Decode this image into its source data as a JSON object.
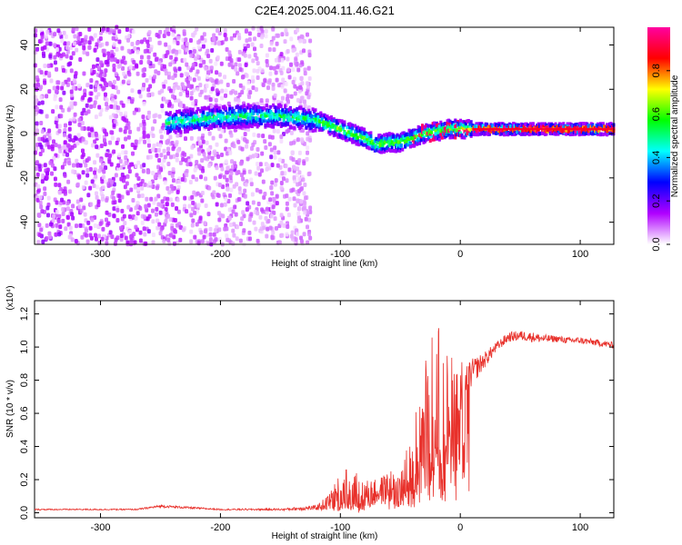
{
  "chart_data": [
    {
      "type": "heatmap",
      "title": "C2E4.2025.004.11.46.G21",
      "xlabel": "Height of straight line (km)",
      "ylabel": "Frequency (Hz)",
      "xlim": [
        -355,
        128
      ],
      "ylim": [
        -50,
        48
      ],
      "xticks": [
        -300,
        -200,
        -100,
        0,
        100
      ],
      "yticks": [
        -40,
        -20,
        0,
        20,
        40
      ],
      "colorbar": {
        "label": "Normalized spectral amplitude",
        "range": [
          0,
          1
        ],
        "ticks": [
          "0.0",
          "0.2",
          "0.4",
          "0.6",
          "0.8"
        ],
        "tick_values": [
          0,
          0.2,
          0.4,
          0.6,
          0.8
        ],
        "colors": [
          "#ffffff",
          "#b000ff",
          "#0000ff",
          "#00ffff",
          "#00ff00",
          "#ffff00",
          "#ff0000",
          "#ff00a0"
        ]
      },
      "ridge": {
        "description": "dominant frequency track",
        "x": [
          -240,
          -210,
          -180,
          -150,
          -120,
          -100,
          -80,
          -70,
          -60,
          -50,
          -40,
          -30,
          -20,
          -10,
          0,
          20,
          60,
          100,
          128
        ],
        "y": [
          5,
          7,
          8,
          8,
          6,
          2,
          -2,
          -5,
          -4,
          -4,
          -2,
          0,
          1,
          2,
          2,
          2,
          2,
          2,
          2
        ]
      },
      "noise_region_x": [
        -355,
        -125
      ]
    },
    {
      "type": "line",
      "xlabel": "Height of straight line (km)",
      "ylabel": "SNR (10 * v/v)",
      "yscale_label": "(x10⁴)",
      "xlim": [
        -355,
        128
      ],
      "ylim": [
        -0.03,
        1.28
      ],
      "xticks": [
        -300,
        -200,
        -100,
        0,
        100
      ],
      "yticks": [
        0.0,
        0.2,
        0.4,
        0.6,
        0.8,
        1.0,
        1.2
      ],
      "series": [
        {
          "name": "SNR",
          "color": "#e8302a",
          "x": [
            -355,
            -300,
            -270,
            -250,
            -200,
            -150,
            -120,
            -110,
            -100,
            -90,
            -80,
            -70,
            -60,
            -50,
            -40,
            -35,
            -30,
            -25,
            -20,
            -15,
            -10,
            -5,
            0,
            5,
            10,
            20,
            30,
            40,
            50,
            60,
            70,
            80,
            90,
            100,
            110,
            120,
            128
          ],
          "y": [
            0.02,
            0.02,
            0.02,
            0.04,
            0.02,
            0.02,
            0.03,
            0.06,
            0.12,
            0.14,
            0.1,
            0.12,
            0.15,
            0.14,
            0.3,
            0.4,
            0.55,
            0.6,
            0.7,
            0.65,
            0.62,
            0.7,
            0.75,
            0.8,
            0.85,
            0.92,
            1.0,
            1.06,
            1.07,
            1.06,
            1.05,
            1.05,
            1.04,
            1.04,
            1.03,
            1.02,
            1.01
          ],
          "amplitude": [
            0.004,
            0.004,
            0.004,
            0.008,
            0.004,
            0.006,
            0.015,
            0.05,
            0.12,
            0.15,
            0.1,
            0.08,
            0.1,
            0.12,
            0.2,
            0.3,
            0.4,
            0.45,
            0.5,
            0.4,
            0.35,
            0.25,
            0.18,
            0.12,
            0.08,
            0.05,
            0.03,
            0.03,
            0.03,
            0.03,
            0.025,
            0.02,
            0.02,
            0.02,
            0.02,
            0.02,
            0.02
          ]
        }
      ]
    }
  ]
}
